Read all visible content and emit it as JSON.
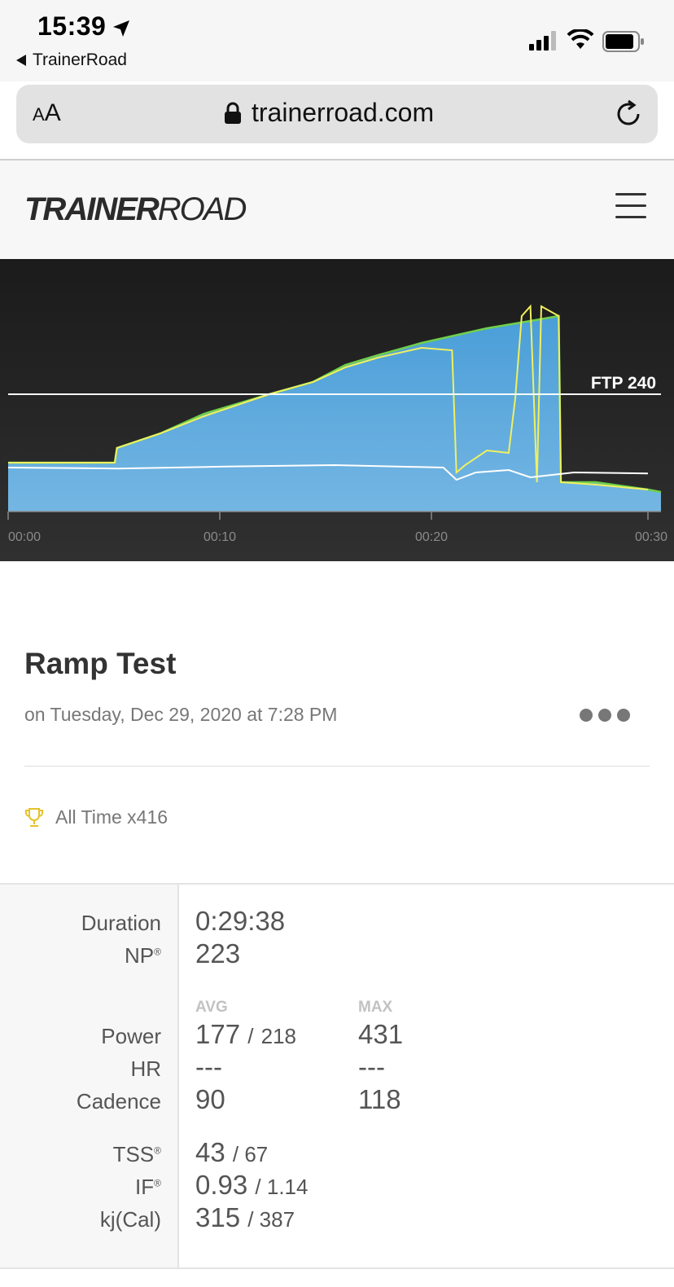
{
  "status_bar": {
    "time": "15:39",
    "back_label": "TrainerRoad"
  },
  "browser": {
    "text_size_label": "AA",
    "url": "trainerroad.com"
  },
  "site": {
    "logo_bold": "TRAINER",
    "logo_light": "ROAD"
  },
  "chart": {
    "ftp_label": "FTP 240",
    "x_ticks": [
      "00:00",
      "00:10",
      "00:20",
      "00:30"
    ]
  },
  "chart_data": {
    "type": "area",
    "title": "",
    "xlabel": "",
    "ylabel": "",
    "x_unit": "minutes",
    "xlim": [
      0,
      30
    ],
    "ftp": 240,
    "series": [
      {
        "kind": "area",
        "x": [
          0,
          4.9,
          5.0,
          7.0,
          9.0,
          12.0,
          14.0,
          15.5,
          17.0,
          19.0,
          20.5,
          22.0,
          24.0,
          25.3,
          25.4,
          27.0,
          29.4,
          30.0
        ],
        "y": [
          100,
          100,
          130,
          160,
          200,
          240,
          265,
          300,
          320,
          345,
          360,
          375,
          390,
          400,
          60,
          60,
          45,
          40
        ]
      },
      {
        "kind": "yellow-line",
        "x": [
          0,
          4.9,
          5.0,
          7.0,
          9.0,
          12.0,
          14.0,
          15.5,
          17.0,
          19.0,
          20.4,
          20.6,
          21.0,
          22.0,
          23.0,
          23.3,
          23.6,
          24.0,
          24.3,
          24.5,
          25.3,
          25.4,
          27.0,
          29.4
        ],
        "y": [
          100,
          100,
          130,
          160,
          195,
          240,
          265,
          295,
          315,
          335,
          330,
          80,
          95,
          125,
          120,
          230,
          400,
          420,
          60,
          420,
          400,
          60,
          55,
          45
        ]
      },
      {
        "kind": "white-line",
        "x": [
          0,
          5,
          10,
          15,
          20,
          20.6,
          21.5,
          23.0,
          24.0,
          25.0,
          26.0,
          29.4
        ],
        "y": [
          90,
          88,
          92,
          95,
          90,
          65,
          80,
          85,
          70,
          75,
          80,
          78
        ]
      }
    ]
  },
  "workout": {
    "title": "Ramp Test",
    "date": "on Tuesday, Dec 29, 2020 at 7:28 PM",
    "record_label": "All Time x416"
  },
  "stats": {
    "duration_label": "Duration",
    "duration": "0:29:38",
    "np_label": "NP",
    "np": "223",
    "avg_header": "AVG",
    "max_header": "MAX",
    "power_label": "Power",
    "power_avg": "177",
    "power_sep": "/",
    "power_avg_alt": "218",
    "power_max": "431",
    "hr_label": "HR",
    "hr_avg": "---",
    "hr_max": "---",
    "cadence_label": "Cadence",
    "cadence_avg": "90",
    "cadence_max": "118",
    "tss_label": "TSS",
    "tss": "43",
    "tss_alt": "/ 67",
    "if_label": "IF",
    "if": "0.93",
    "if_alt": "/ 1.14",
    "kj_label": "kj(Cal)",
    "kj": "315",
    "kj_alt": "/ 387"
  }
}
